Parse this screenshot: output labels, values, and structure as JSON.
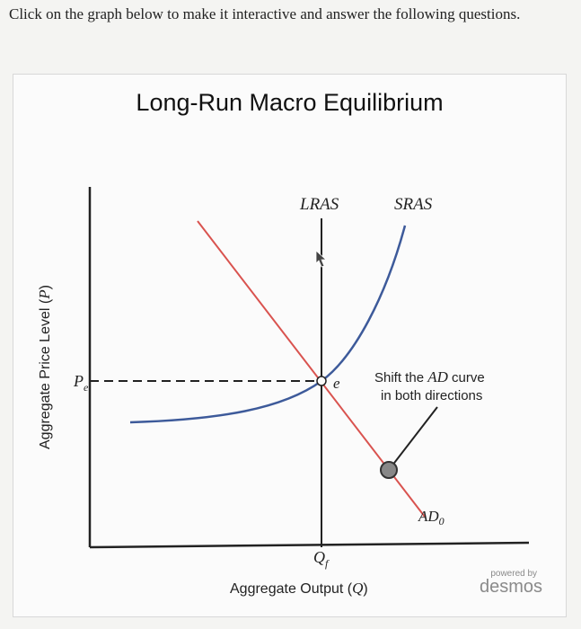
{
  "instruction": "Click on the graph below to make it interactive and answer the following questions.",
  "graph": {
    "title": "Long-Run Macro Equilibrium",
    "y_axis_label": "Aggregate Price Level (P)",
    "x_axis_label": "Aggregate Output (Q)",
    "curves": {
      "lras": "LRAS",
      "sras": "SRAS",
      "ad_base": "AD",
      "ad_sub": "0"
    },
    "price_label_base": "P",
    "price_label_sub": "e",
    "output_label_base": "Q",
    "output_label_sub": "f",
    "equilibrium_label": "e",
    "hint_line1": "Shift the AD curve",
    "hint_line2": "in both directions",
    "colors": {
      "ad": "#d9534f",
      "sras": "#3d5a9a",
      "axes": "#222222",
      "handle": "#888888"
    }
  },
  "branding": {
    "powered_by": "powered by",
    "brand": "desmos"
  }
}
